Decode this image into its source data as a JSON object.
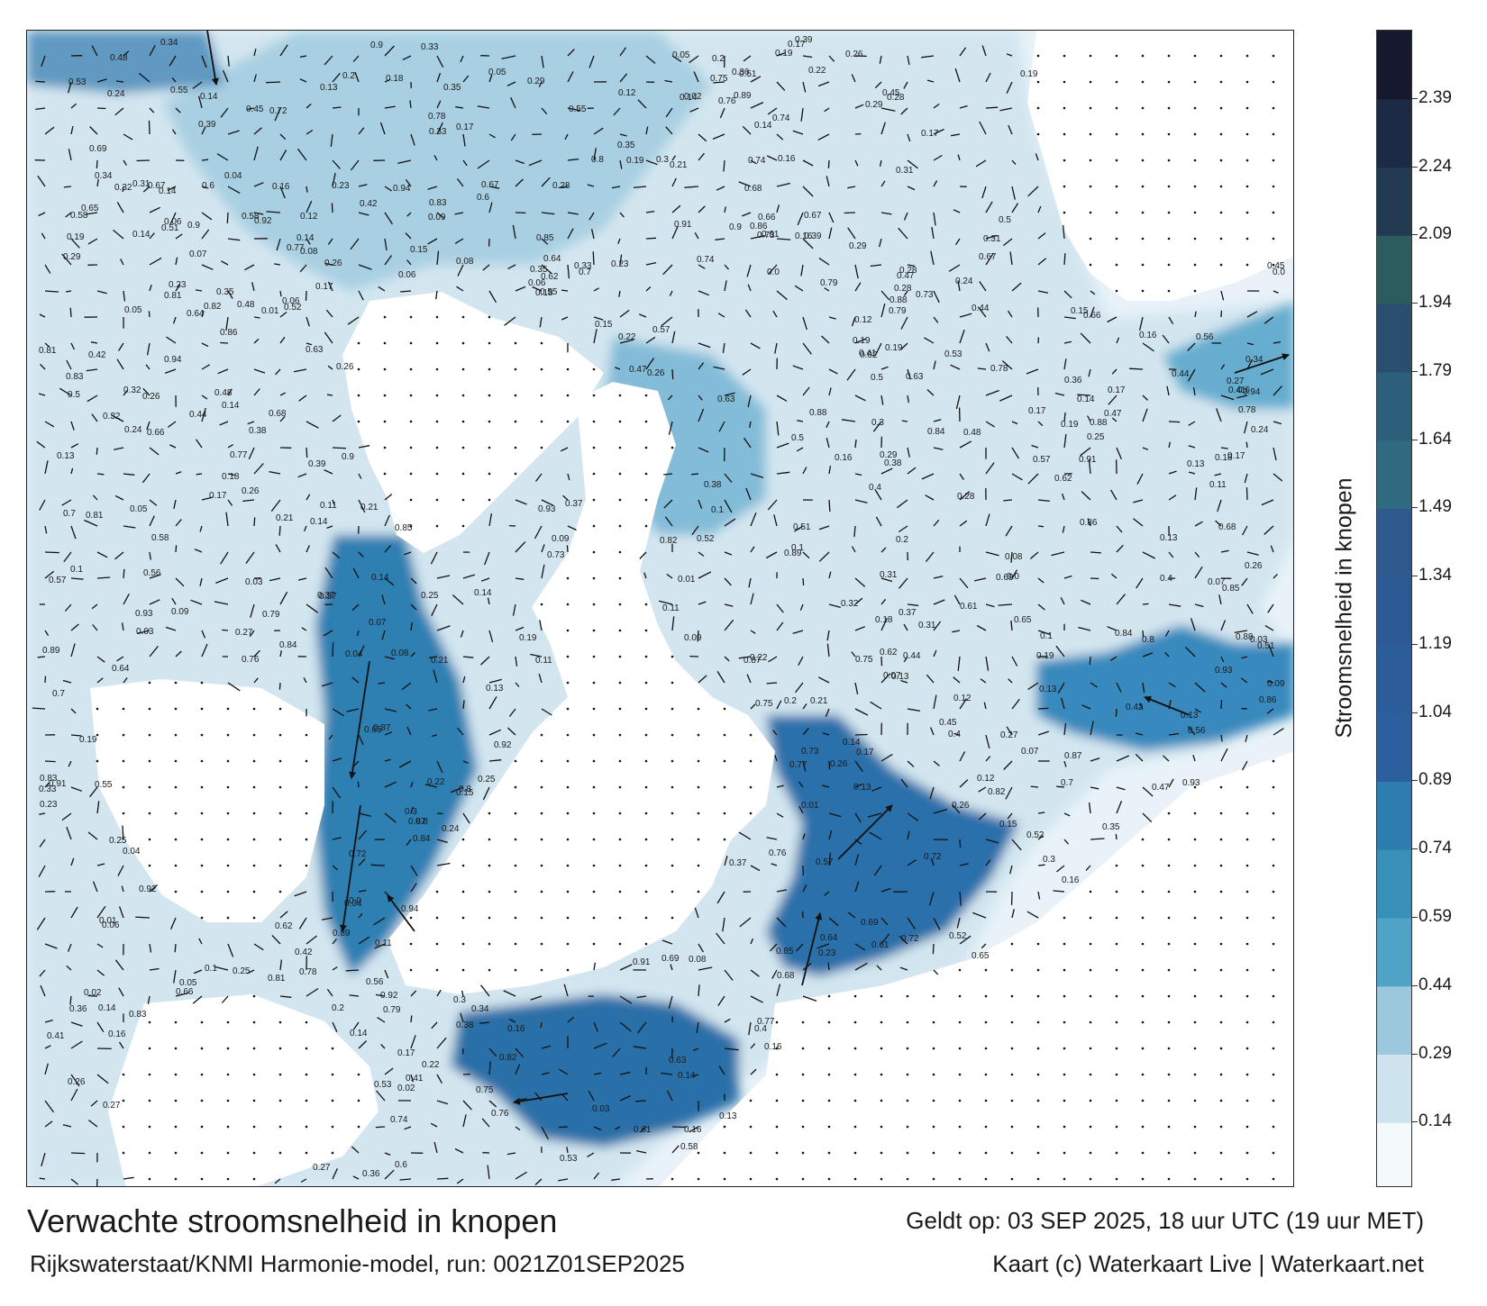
{
  "map": {
    "units": "knopen",
    "colors": {
      "land": "#ffffff",
      "border": "#222222",
      "arrow": "#111111",
      "dot": "#111111"
    },
    "labels": [
      "0.18",
      "0.27",
      "0.17",
      "0.14",
      "0.25",
      "0.14",
      "0.12",
      "0.29",
      "0.26",
      "0.13",
      "0.16",
      "0.19",
      "0.09",
      "0.15",
      "0.19",
      "0.11",
      "0.14",
      "0.13",
      "0.2",
      "0.16",
      "0.28",
      "0.24",
      "0.1",
      "0.07",
      "0.17",
      "0.05",
      "0.06",
      "0.08",
      "0.22",
      "0.3",
      "0.21",
      "0.35",
      "0.37",
      "0.31",
      "0.26",
      "0.23",
      "0.32",
      "0.0",
      "0.04",
      "0.02",
      "0.01",
      "0.03",
      "0.33",
      "0.36",
      "0.34",
      "0.38",
      "0.4",
      "0.41",
      "0.42",
      "0.44",
      "0.45",
      "0.47",
      "0.48",
      "0.5",
      "0.51",
      "0.52",
      "0.53",
      "0.55",
      "0.56",
      "0.57",
      "0.58",
      "0.6",
      "0.61",
      "0.62",
      "0.63",
      "0.64",
      "0.65",
      "0.66",
      "0.67",
      "0.68",
      "0.69",
      "0.7",
      "0.72",
      "0.73",
      "0.74",
      "0.75",
      "0.76",
      "0.77",
      "0.78",
      "0.79",
      "0.8",
      "0.81",
      "0.82",
      "0.83",
      "0.84",
      "0.85",
      "0.86",
      "0.87",
      "0.88",
      "0.89",
      "0.9",
      "0.91",
      "0.92",
      "0.93",
      "0.94",
      "0.39"
    ]
  },
  "colorbar": {
    "min": 0,
    "max": 2.54,
    "ticks": [
      "2.39",
      "2.24",
      "2.09",
      "1.94",
      "1.79",
      "1.64",
      "1.49",
      "1.34",
      "1.19",
      "1.04",
      "0.89",
      "0.74",
      "0.59",
      "0.44",
      "0.29",
      "0.14"
    ],
    "tick_values": [
      2.39,
      2.24,
      2.09,
      1.94,
      1.79,
      1.64,
      1.49,
      1.34,
      1.19,
      1.04,
      0.89,
      0.74,
      0.59,
      0.44,
      0.29,
      0.14
    ],
    "bands": [
      {
        "from": 0.0,
        "to": 0.14,
        "color": "#f4f9fc"
      },
      {
        "from": 0.14,
        "to": 0.29,
        "color": "#cfe3ee"
      },
      {
        "from": 0.29,
        "to": 0.44,
        "color": "#9cc8dd"
      },
      {
        "from": 0.44,
        "to": 0.59,
        "color": "#4ea3c7"
      },
      {
        "from": 0.59,
        "to": 0.74,
        "color": "#3790b8"
      },
      {
        "from": 0.74,
        "to": 0.89,
        "color": "#2d7db0"
      },
      {
        "from": 0.89,
        "to": 1.04,
        "color": "#2b5f9e"
      },
      {
        "from": 1.04,
        "to": 1.19,
        "color": "#2c5c99"
      },
      {
        "from": 1.19,
        "to": 1.34,
        "color": "#2d5a95"
      },
      {
        "from": 1.34,
        "to": 1.49,
        "color": "#2e5a8d"
      },
      {
        "from": 1.49,
        "to": 1.64,
        "color": "#2f6a80"
      },
      {
        "from": 1.64,
        "to": 1.79,
        "color": "#2e5f7a"
      },
      {
        "from": 1.79,
        "to": 1.94,
        "color": "#2a4f6e"
      },
      {
        "from": 1.94,
        "to": 2.09,
        "color": "#2b5d5e"
      },
      {
        "from": 2.09,
        "to": 2.24,
        "color": "#223a52"
      },
      {
        "from": 2.24,
        "to": 2.39,
        "color": "#1c2a45"
      },
      {
        "from": 2.39,
        "to": 2.54,
        "color": "#16182e"
      }
    ],
    "label": "Stroomsnelheid in knopen"
  },
  "footer": {
    "title": "Verwachte stroomsnelheid in knopen",
    "subtitle": "Rijkswaterstaat/KNMI Harmonie-model, run: 0021Z01SEP2025",
    "valid": "Geldt op: 03 SEP 2025, 18 uur UTC (19 uur MET)",
    "credit": "Kaart (c) Waterkaart Live | Waterkaart.net"
  }
}
